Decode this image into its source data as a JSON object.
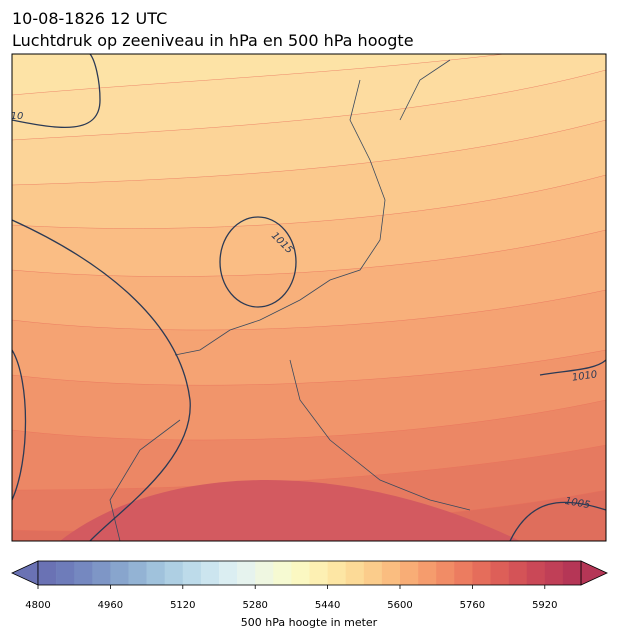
{
  "title_line_1": "10-08-1826 12 UTC",
  "title_line_2": "Luchtdruk op zeeniveau in hPa en 500 hPa hoogte",
  "contour_labels": [
    "10",
    "1015",
    "1010",
    "1005"
  ],
  "colorbar": {
    "label": "500 hPa hoogte in meter",
    "lim": [
      4800,
      6000
    ],
    "ticks": [
      4800,
      4960,
      5120,
      5280,
      5440,
      5600,
      5760,
      5920
    ],
    "step": 40,
    "colors": [
      "#6a72b4",
      "#6e7cba",
      "#7588c0",
      "#7e96c6",
      "#88a5cd",
      "#93b3d4",
      "#a0c2dc",
      "#aecfe3",
      "#bddbea",
      "#cce5ef",
      "#dbeef2",
      "#e6f3ee",
      "#eff7e1",
      "#f6fad2",
      "#fbf8c2",
      "#fdf0b3",
      "#fde6a4",
      "#fcda97",
      "#fbcc8b",
      "#fabd80",
      "#f8ad76",
      "#f59c6d",
      "#f18c66",
      "#ec7c60",
      "#e56d5b",
      "#dd5f58",
      "#d45357",
      "#ca4857",
      "#c03f57",
      "#b53656"
    ]
  }
}
